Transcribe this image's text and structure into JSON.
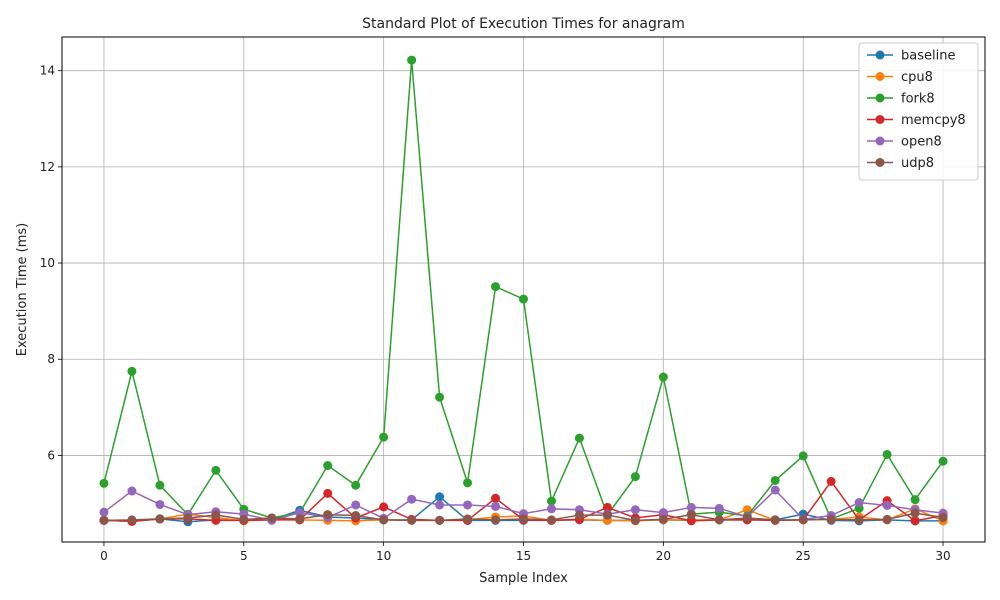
{
  "chart_data": {
    "type": "line",
    "title": "Standard Plot of Execution Times for anagram",
    "xlabel": "Sample Index",
    "ylabel": "Execution Time (ms)",
    "xlim": [
      -1.5,
      31.5
    ],
    "ylim": [
      4.2,
      14.7
    ],
    "xticks": [
      0,
      5,
      10,
      15,
      20,
      25,
      30
    ],
    "yticks": [
      6,
      8,
      10,
      12,
      14
    ],
    "grid": true,
    "legend_position": "top-right",
    "x": [
      0,
      1,
      2,
      3,
      4,
      5,
      6,
      7,
      8,
      9,
      10,
      11,
      12,
      13,
      14,
      15,
      16,
      17,
      18,
      19,
      20,
      21,
      22,
      23,
      24,
      25,
      26,
      27,
      28,
      29,
      30
    ],
    "series": [
      {
        "name": "baseline",
        "color": "#1f77b4",
        "values": [
          4.65,
          4.63,
          4.68,
          4.62,
          4.66,
          4.65,
          4.66,
          4.86,
          4.72,
          4.7,
          4.66,
          4.66,
          5.14,
          4.65,
          4.65,
          4.65,
          4.65,
          4.66,
          4.65,
          4.65,
          4.66,
          4.65,
          4.66,
          4.66,
          4.66,
          4.78,
          4.65,
          4.64,
          4.66,
          4.64,
          4.64
        ]
      },
      {
        "name": "cpu8",
        "color": "#ff7f0e",
        "values": [
          4.65,
          4.63,
          4.68,
          4.78,
          4.71,
          4.64,
          4.67,
          4.66,
          4.65,
          4.64,
          4.66,
          4.65,
          4.65,
          4.66,
          4.72,
          4.74,
          4.65,
          4.67,
          4.65,
          4.64,
          4.66,
          4.66,
          4.66,
          4.87,
          4.65,
          4.66,
          4.67,
          4.72,
          4.66,
          4.89,
          4.64
        ]
      },
      {
        "name": "fork8",
        "color": "#2ca02c",
        "values": [
          5.42,
          7.75,
          5.38,
          4.77,
          5.69,
          4.88,
          4.7,
          4.81,
          5.79,
          5.38,
          6.38,
          14.22,
          7.21,
          5.43,
          9.51,
          9.25,
          5.05,
          6.36,
          4.76,
          5.56,
          7.63,
          4.78,
          4.82,
          4.74,
          5.48,
          5.99,
          4.68,
          4.9,
          6.02,
          5.08,
          5.88
        ]
      },
      {
        "name": "memcpy8",
        "color": "#d62728",
        "values": [
          4.65,
          4.63,
          4.68,
          4.68,
          4.65,
          4.65,
          4.66,
          4.66,
          5.21,
          4.7,
          4.93,
          4.67,
          4.65,
          4.65,
          5.11,
          4.66,
          4.65,
          4.67,
          4.92,
          4.7,
          4.77,
          4.64,
          4.66,
          4.66,
          4.65,
          4.66,
          5.46,
          4.66,
          5.06,
          4.64,
          4.75
        ]
      },
      {
        "name": "open8",
        "color": "#9467bd",
        "values": [
          4.82,
          5.26,
          4.98,
          4.77,
          4.83,
          4.78,
          4.65,
          4.81,
          4.71,
          4.97,
          4.69,
          5.09,
          4.97,
          4.97,
          4.94,
          4.79,
          4.89,
          4.87,
          4.78,
          4.87,
          4.81,
          4.92,
          4.9,
          4.72,
          5.28,
          4.67,
          4.75,
          5.02,
          4.96,
          4.87,
          4.8
        ]
      },
      {
        "name": "udp8",
        "color": "#8c564b",
        "values": [
          4.65,
          4.66,
          4.68,
          4.7,
          4.76,
          4.67,
          4.7,
          4.68,
          4.77,
          4.75,
          4.66,
          4.65,
          4.65,
          4.68,
          4.66,
          4.68,
          4.66,
          4.76,
          4.76,
          4.65,
          4.67,
          4.77,
          4.66,
          4.7,
          4.66,
          4.66,
          4.67,
          4.66,
          4.67,
          4.8,
          4.71
        ]
      }
    ]
  }
}
